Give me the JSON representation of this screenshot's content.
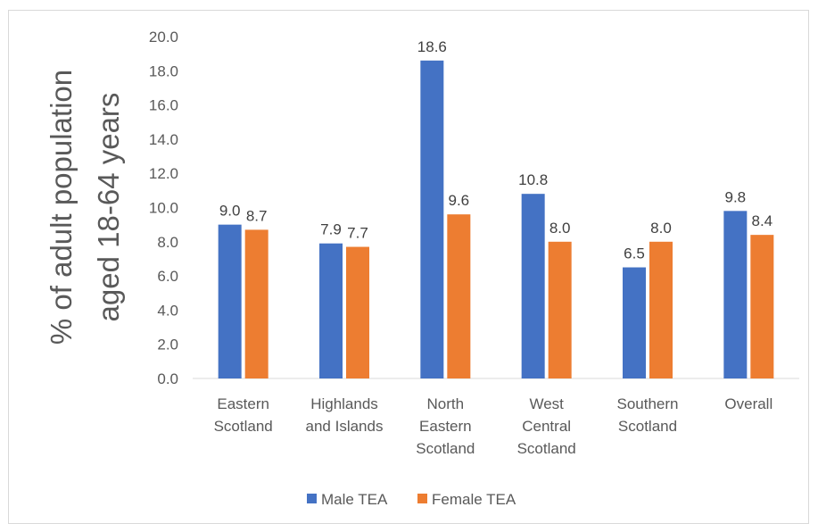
{
  "chart_data": {
    "type": "bar",
    "categories": [
      [
        "Eastern",
        "Scotland"
      ],
      [
        "Highlands",
        "and Islands"
      ],
      [
        "North",
        "Eastern",
        "Scotland"
      ],
      [
        "West",
        "Central",
        "Scotland"
      ],
      [
        "Southern",
        "Scotland"
      ],
      [
        "Overall"
      ]
    ],
    "series": [
      {
        "name": "Male TEA",
        "color": "#4472c4",
        "values": [
          9.0,
          7.9,
          18.6,
          10.8,
          6.5,
          9.8
        ]
      },
      {
        "name": "Female TEA",
        "color": "#ed7d31",
        "values": [
          8.7,
          7.7,
          9.6,
          8.0,
          8.0,
          8.4
        ]
      }
    ],
    "ylabel": [
      "% of adult population",
      "aged 18-64 years"
    ],
    "ylim": [
      0,
      20
    ],
    "yticks": [
      "0.0",
      "2.0",
      "4.0",
      "6.0",
      "8.0",
      "10.0",
      "12.0",
      "14.0",
      "16.0",
      "18.0",
      "20.0"
    ],
    "grid": false,
    "legend": "bottom"
  }
}
